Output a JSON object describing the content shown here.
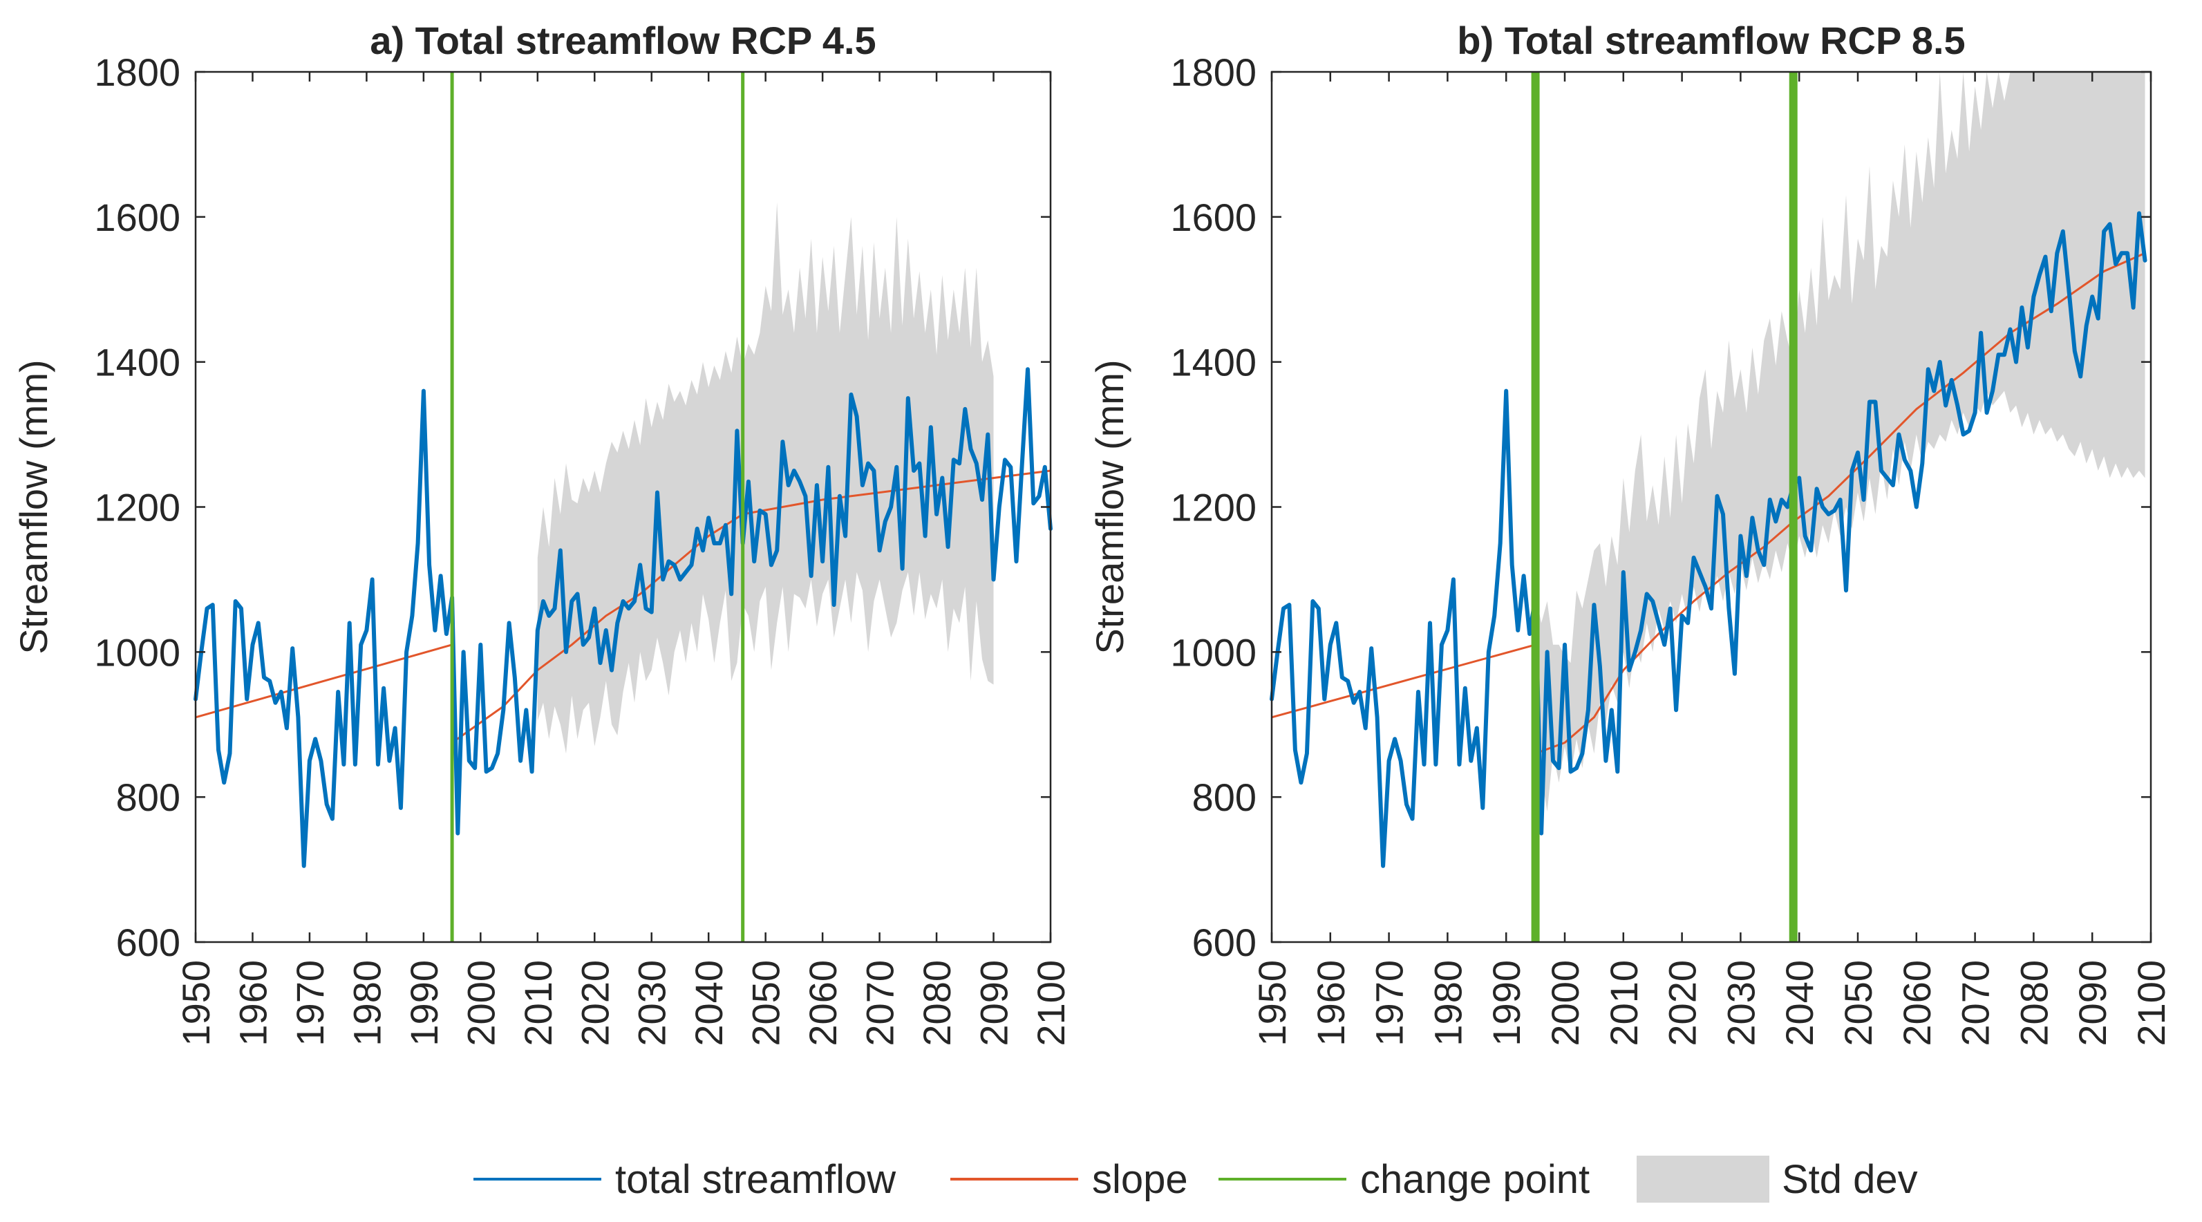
{
  "legend": {
    "flow_label": "total streamflow",
    "slope_label": "slope",
    "change_label": "change point",
    "std_label": "Std dev"
  },
  "colors": {
    "flow": "#0072BD",
    "slope": "#E2562B",
    "change": "#5EB02A",
    "std": "#D6D6D6",
    "axis": "#262626"
  },
  "chart_data": [
    {
      "type": "line",
      "title": "a) Total streamflow RCP 4.5",
      "xlabel": "",
      "ylabel": "Streamflow (mm)",
      "xlim": [
        1950,
        2100
      ],
      "ylim": [
        600,
        1800
      ],
      "xticks": [
        1950,
        1960,
        1970,
        1980,
        1990,
        2000,
        2010,
        2020,
        2030,
        2040,
        2050,
        2060,
        2070,
        2080,
        2090,
        2100
      ],
      "yticks": [
        600,
        800,
        1000,
        1200,
        1400,
        1600,
        1800
      ],
      "grid": false,
      "legend_position": "bottom",
      "series": [
        {
          "name": "total streamflow",
          "x_start": 1950,
          "x_step": 1,
          "values": [
            935,
            1000,
            1060,
            1065,
            865,
            820,
            860,
            1070,
            1060,
            935,
            1010,
            1040,
            965,
            960,
            930,
            945,
            895,
            1005,
            910,
            705,
            850,
            880,
            850,
            790,
            770,
            945,
            845,
            1040,
            845,
            1010,
            1030,
            1100,
            845,
            950,
            850,
            895,
            785,
            1000,
            1050,
            1150,
            1360,
            1120,
            1030,
            1105,
            1025,
            1075,
            750,
            1000,
            850,
            840,
            1010,
            835,
            840,
            860,
            920,
            1040,
            965,
            850,
            920,
            835,
            1030,
            1070,
            1050,
            1060,
            1140,
            1000,
            1070,
            1080,
            1010,
            1020,
            1060,
            985,
            1030,
            975,
            1040,
            1070,
            1060,
            1070,
            1120,
            1060,
            1055,
            1220,
            1100,
            1125,
            1120,
            1100,
            1110,
            1120,
            1170,
            1140,
            1185,
            1150,
            1150,
            1175,
            1080,
            1305,
            1150,
            1235,
            1125,
            1195,
            1190,
            1120,
            1140,
            1290,
            1230,
            1250,
            1235,
            1215,
            1105,
            1230,
            1125,
            1255,
            1065,
            1215,
            1160,
            1355,
            1325,
            1230,
            1260,
            1250,
            1140,
            1180,
            1200,
            1255,
            1115,
            1350,
            1250,
            1260,
            1160,
            1310,
            1190,
            1240,
            1145,
            1265,
            1260,
            1335,
            1280,
            1260,
            1210,
            1300,
            1100,
            1200,
            1265,
            1255,
            1125,
            1260,
            1390,
            1205,
            1215,
            1255,
            1170
          ]
        }
      ],
      "slope_segments": [
        [
          [
            1950,
            910
          ],
          [
            1995,
            1010
          ]
        ],
        [
          [
            1995,
            875
          ],
          [
            2004,
            925
          ],
          [
            2010,
            975
          ],
          [
            2016,
            1010
          ],
          [
            2022,
            1050
          ],
          [
            2028,
            1080
          ],
          [
            2034,
            1120
          ],
          [
            2040,
            1160
          ],
          [
            2046,
            1190
          ]
        ],
        [
          [
            2046,
            1190
          ],
          [
            2060,
            1210
          ],
          [
            2075,
            1225
          ],
          [
            2090,
            1240
          ],
          [
            2100,
            1250
          ]
        ]
      ],
      "change_points": [
        1995,
        2046
      ],
      "change_point_width": "thin",
      "std_band": {
        "x_start": 2010,
        "x_step": 1,
        "upper": [
          1130,
          1200,
          1145,
          1240,
          1190,
          1260,
          1210,
          1205,
          1240,
          1220,
          1250,
          1220,
          1260,
          1290,
          1275,
          1305,
          1280,
          1320,
          1285,
          1350,
          1310,
          1345,
          1320,
          1370,
          1345,
          1360,
          1340,
          1375,
          1355,
          1400,
          1365,
          1395,
          1375,
          1415,
          1385,
          1435,
          1395,
          1425,
          1410,
          1440,
          1505,
          1470,
          1620,
          1465,
          1500,
          1440,
          1530,
          1460,
          1570,
          1440,
          1545,
          1470,
          1560,
          1440,
          1520,
          1600,
          1465,
          1560,
          1430,
          1565,
          1460,
          1530,
          1440,
          1600,
          1450,
          1570,
          1460,
          1525,
          1440,
          1500,
          1410,
          1520,
          1430,
          1500,
          1440,
          1530,
          1420,
          1530,
          1400,
          1430,
          1380
        ],
        "lower": [
          905,
          930,
          880,
          925,
          900,
          860,
          940,
          880,
          920,
          930,
          870,
          910,
          960,
          900,
          885,
          945,
          985,
          930,
          1000,
          960,
          975,
          1020,
          985,
          940,
          1000,
          1030,
          985,
          1040,
          1000,
          1080,
          1045,
          985,
          1040,
          1085,
          960,
          985,
          1065,
          1050,
          1000,
          1070,
          1090,
          975,
          1040,
          1090,
          1000,
          1080,
          1075,
          1060,
          1100,
          1035,
          1080,
          1100,
          1020,
          1060,
          1100,
          1040,
          1110,
          1085,
          1000,
          1070,
          1100,
          1060,
          1020,
          1040,
          1085,
          1110,
          1050,
          1110,
          1045,
          1080,
          1060,
          1100,
          1000,
          1060,
          1040,
          1090,
          960,
          1070,
          990,
          960,
          955
        ]
      }
    },
    {
      "type": "line",
      "title": "b) Total streamflow RCP 8.5",
      "xlabel": "",
      "ylabel": "Streamflow (mm)",
      "xlim": [
        1950,
        2100
      ],
      "ylim": [
        600,
        1800
      ],
      "xticks": [
        1950,
        1960,
        1970,
        1980,
        1990,
        2000,
        2010,
        2020,
        2030,
        2040,
        2050,
        2060,
        2070,
        2080,
        2090,
        2100
      ],
      "yticks": [
        600,
        800,
        1000,
        1200,
        1400,
        1600,
        1800
      ],
      "grid": false,
      "legend_position": "bottom",
      "series": [
        {
          "name": "total streamflow",
          "x_start": 1950,
          "x_step": 1,
          "values": [
            935,
            1000,
            1060,
            1065,
            865,
            820,
            860,
            1070,
            1060,
            935,
            1010,
            1040,
            965,
            960,
            930,
            945,
            895,
            1005,
            910,
            705,
            850,
            880,
            850,
            790,
            770,
            945,
            845,
            1040,
            845,
            1010,
            1030,
            1100,
            845,
            950,
            850,
            895,
            785,
            1000,
            1050,
            1150,
            1360,
            1120,
            1030,
            1105,
            1025,
            1075,
            750,
            1000,
            850,
            840,
            1010,
            835,
            840,
            860,
            920,
            1065,
            980,
            850,
            920,
            835,
            1110,
            975,
            1000,
            1030,
            1080,
            1070,
            1040,
            1010,
            1060,
            920,
            1050,
            1040,
            1130,
            1110,
            1090,
            1060,
            1215,
            1190,
            1060,
            970,
            1160,
            1105,
            1185,
            1140,
            1120,
            1210,
            1180,
            1210,
            1200,
            1230,
            1240,
            1160,
            1140,
            1225,
            1200,
            1190,
            1195,
            1210,
            1085,
            1250,
            1275,
            1210,
            1345,
            1345,
            1250,
            1240,
            1230,
            1300,
            1265,
            1250,
            1200,
            1260,
            1390,
            1360,
            1400,
            1340,
            1375,
            1340,
            1300,
            1305,
            1330,
            1440,
            1330,
            1360,
            1410,
            1410,
            1445,
            1400,
            1475,
            1420,
            1490,
            1520,
            1545,
            1470,
            1550,
            1580,
            1500,
            1415,
            1380,
            1450,
            1490,
            1460,
            1580,
            1590,
            1535,
            1550,
            1550,
            1475,
            1605,
            1540
          ]
        }
      ],
      "slope_segments": [
        [
          [
            1950,
            910
          ],
          [
            1995,
            1010
          ]
        ],
        [
          [
            1995,
            860
          ],
          [
            2000,
            875
          ],
          [
            2005,
            910
          ],
          [
            2010,
            975
          ],
          [
            2016,
            1025
          ],
          [
            2022,
            1070
          ],
          [
            2028,
            1110
          ],
          [
            2034,
            1145
          ],
          [
            2039,
            1180
          ]
        ],
        [
          [
            2039,
            1180
          ],
          [
            2045,
            1215
          ],
          [
            2052,
            1270
          ],
          [
            2060,
            1335
          ],
          [
            2068,
            1385
          ],
          [
            2076,
            1440
          ],
          [
            2084,
            1480
          ],
          [
            2092,
            1525
          ],
          [
            2099,
            1550
          ]
        ]
      ],
      "change_points": [
        1995,
        2039
      ],
      "change_point_width": "thick",
      "std_band": {
        "x_start": 1995,
        "x_step": 1,
        "upper": [
          1080,
          1040,
          1070,
          1010,
          1010,
          995,
          985,
          1085,
          1060,
          1100,
          1140,
          1150,
          1090,
          1160,
          1120,
          1240,
          1165,
          1250,
          1300,
          1180,
          1230,
          1175,
          1270,
          1185,
          1300,
          1205,
          1315,
          1260,
          1350,
          1390,
          1280,
          1360,
          1330,
          1430,
          1350,
          1390,
          1330,
          1420,
          1355,
          1430,
          1460,
          1395,
          1470,
          1430,
          1400,
          1500,
          1440,
          1530,
          1450,
          1600,
          1485,
          1520,
          1500,
          1630,
          1480,
          1570,
          1540,
          1670,
          1500,
          1560,
          1545,
          1650,
          1600,
          1700,
          1585,
          1690,
          1620,
          1710,
          1640,
          1800,
          1660,
          1720,
          1680,
          1800,
          1690,
          1780,
          1720,
          1800,
          1750,
          1800,
          1760,
          1800,
          1800,
          1800,
          1800,
          1800,
          1800,
          1800,
          1800,
          1800,
          1800,
          1800,
          1800,
          1800,
          1800,
          1800,
          1800,
          1800,
          1800,
          1800,
          1800,
          1800,
          1800,
          1800,
          1800
        ],
        "lower": [
          740,
          830,
          780,
          860,
          820,
          870,
          830,
          880,
          840,
          900,
          860,
          930,
          900,
          955,
          930,
          1000,
          950,
          1010,
          985,
          1040,
          1000,
          1060,
          1030,
          1070,
          1040,
          1080,
          1045,
          1090,
          1055,
          1100,
          1060,
          1105,
          1070,
          1110,
          1080,
          1120,
          1085,
          1130,
          1095,
          1125,
          1100,
          1140,
          1110,
          1150,
          1120,
          1160,
          1130,
          1170,
          1130,
          1175,
          1150,
          1195,
          1160,
          1200,
          1170,
          1220,
          1180,
          1240,
          1190,
          1260,
          1210,
          1280,
          1230,
          1290,
          1250,
          1300,
          1260,
          1290,
          1280,
          1300,
          1290,
          1320,
          1300,
          1330,
          1310,
          1340,
          1330,
          1360,
          1340,
          1350,
          1360,
          1330,
          1340,
          1310,
          1330,
          1300,
          1320,
          1300,
          1310,
          1290,
          1300,
          1280,
          1270,
          1290,
          1260,
          1280,
          1250,
          1270,
          1240,
          1260,
          1240,
          1255,
          1240,
          1250,
          1240
        ]
      }
    }
  ]
}
